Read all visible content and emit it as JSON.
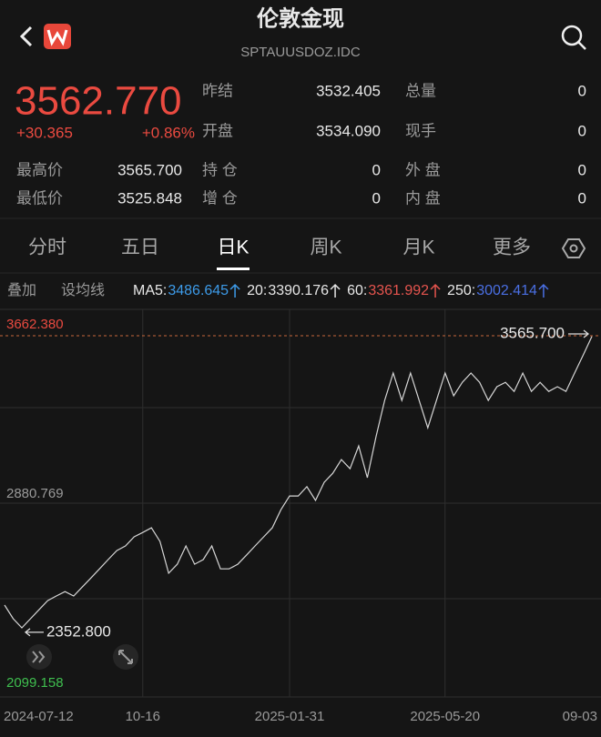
{
  "header": {
    "title": "伦敦金现",
    "subtitle": "SPTAUUSDOZ.IDC"
  },
  "quote": {
    "price": "3562.770",
    "change": "+30.365",
    "change_pct": "+0.86%",
    "stats": [
      [
        "昨结",
        "3532.405",
        "总量",
        "0"
      ],
      [
        "开盘",
        "3534.090",
        "现手",
        "0"
      ]
    ],
    "stats2": [
      [
        "最高价",
        "3565.700",
        "持 仓",
        "0",
        "外 盘",
        "0"
      ],
      [
        "最低价",
        "3525.848",
        "增 仓",
        "0",
        "内 盘",
        "0"
      ]
    ]
  },
  "tabs": [
    "分时",
    "五日",
    "日K",
    "周K",
    "月K",
    "更多"
  ],
  "active_tab_index": 2,
  "toolbar": {
    "overlay": "叠加",
    "set_ma": "设均线",
    "ma": [
      {
        "name": "MA5:",
        "value": "3486.645",
        "color": "#3d9be9"
      },
      {
        "name": "20:",
        "value": "3390.176",
        "color": "#e6e6e6"
      },
      {
        "name": "60:",
        "value": "3361.992",
        "color": "#e5544e"
      },
      {
        "name": "250:",
        "value": "3002.414",
        "color": "#4a6fe3"
      }
    ]
  },
  "chart_data": {
    "type": "line",
    "color": "#d6d6d6",
    "grid": true,
    "values": [
      2464,
      2408,
      2371,
      2408,
      2445,
      2482,
      2501,
      2519,
      2501,
      2538,
      2575,
      2612,
      2650,
      2687,
      2706,
      2743,
      2761,
      2780,
      2724,
      2594,
      2631,
      2706,
      2631,
      2650,
      2706,
      2612,
      2612,
      2631,
      2668,
      2706,
      2743,
      2780,
      2854,
      2910,
      2910,
      2948,
      2892,
      2966,
      3003,
      3059,
      3022,
      3115,
      2985,
      3152,
      3301,
      3413,
      3301,
      3413,
      3301,
      3189,
      3301,
      3413,
      3320,
      3375,
      3413,
      3375,
      3301,
      3357,
      3375,
      3338,
      3413,
      3338,
      3375,
      3338,
      3357,
      3338,
      3413,
      3487,
      3562.77
    ],
    "xlim": [
      0,
      68
    ],
    "xticks": [
      {
        "value": 0,
        "label": "2024-07-12"
      },
      {
        "value": 16,
        "label": "10-16"
      },
      {
        "value": 33,
        "label": "2025-01-31"
      },
      {
        "value": 51,
        "label": "2025-05-20"
      },
      {
        "value": 68,
        "label": "09-03"
      }
    ],
    "ylim": [
      2099.158,
      3662.38
    ],
    "yticks": [
      {
        "value": 3662.38,
        "label": "3662.380"
      },
      {
        "value": 2880.769,
        "label": "2880.769"
      },
      {
        "value": 2099.158,
        "label": "2099.158"
      }
    ],
    "max_marker": {
      "value": 3565.7,
      "label": "3565.700",
      "index": 68
    },
    "min_marker": {
      "value": 2352.8,
      "label": "2352.800",
      "index": 2
    }
  }
}
